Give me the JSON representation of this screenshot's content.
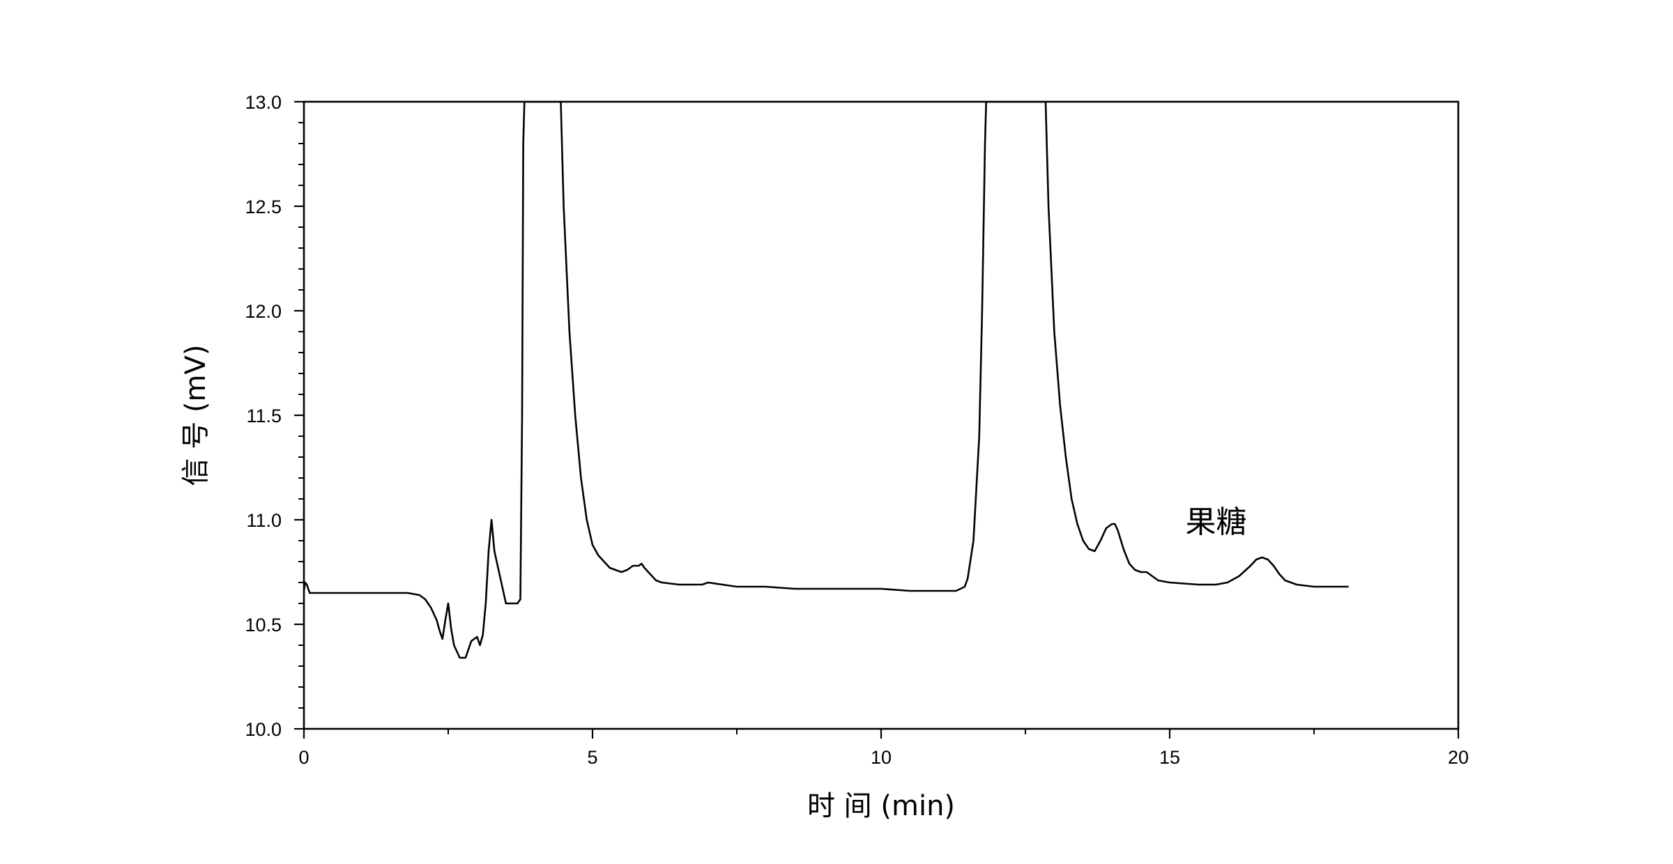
{
  "chart_data": {
    "type": "line",
    "title": "",
    "xlabel": "时 间 (min)",
    "ylabel": "信 号 (mV)",
    "xlim": [
      0,
      20
    ],
    "ylim": [
      10.0,
      13.0
    ],
    "x_ticks": [
      0,
      5,
      10,
      15,
      20
    ],
    "x_tick_labels": [
      "0",
      "5",
      "10",
      "15",
      "20"
    ],
    "y_ticks": [
      10.0,
      10.5,
      11.0,
      11.5,
      12.0,
      12.5,
      13.0
    ],
    "y_tick_labels": [
      "10.0",
      "10.5",
      "11.0",
      "11.5",
      "12.0",
      "12.5",
      "13.0"
    ],
    "grid": false,
    "legend": "none",
    "line_color": "#000000",
    "annotations": [
      {
        "text": "果糖",
        "x": 16.6,
        "y": 11.0
      }
    ],
    "series": [
      {
        "x": [
          0.0,
          0.02,
          0.05,
          0.1,
          0.5,
          1.0,
          1.5,
          1.8,
          2.0,
          2.1,
          2.2,
          2.3,
          2.35,
          2.4,
          2.45,
          2.5,
          2.55,
          2.6,
          2.7,
          2.8,
          2.9,
          3.0,
          3.05,
          3.1,
          3.15,
          3.2,
          3.25,
          3.3,
          3.5,
          3.7,
          3.75,
          3.78,
          3.8,
          3.82,
          4.45,
          4.5,
          4.6,
          4.7,
          4.8,
          4.9,
          5.0,
          5.1,
          5.2,
          5.3,
          5.4,
          5.5,
          5.6,
          5.7,
          5.8,
          5.85,
          5.9,
          6.0,
          6.1,
          6.2,
          6.5,
          6.9,
          7.0,
          7.5,
          8.0,
          8.5,
          9.0,
          9.5,
          10.0,
          10.5,
          11.0,
          11.3,
          11.45,
          11.5,
          11.6,
          11.7,
          11.75,
          11.8,
          11.82,
          12.85,
          12.9,
          13.0,
          13.1,
          13.2,
          13.3,
          13.4,
          13.5,
          13.6,
          13.7,
          13.8,
          13.9,
          14.0,
          14.05,
          14.1,
          14.2,
          14.3,
          14.4,
          14.5,
          14.6,
          14.7,
          14.8,
          15.0,
          15.5,
          15.8,
          16.0,
          16.2,
          16.4,
          16.5,
          16.6,
          16.7,
          16.8,
          16.9,
          17.0,
          17.2,
          17.5,
          17.8,
          18.0,
          18.1
        ],
        "values": [
          10.66,
          10.7,
          10.69,
          10.65,
          10.65,
          10.65,
          10.65,
          10.65,
          10.64,
          10.62,
          10.58,
          10.52,
          10.47,
          10.43,
          10.52,
          10.6,
          10.48,
          10.4,
          10.34,
          10.34,
          10.42,
          10.44,
          10.4,
          10.45,
          10.6,
          10.85,
          11.0,
          10.85,
          10.6,
          10.6,
          10.62,
          11.5,
          12.8,
          13.0,
          13.0,
          12.5,
          11.9,
          11.5,
          11.2,
          11.0,
          10.88,
          10.83,
          10.8,
          10.77,
          10.76,
          10.75,
          10.76,
          10.78,
          10.78,
          10.79,
          10.77,
          10.74,
          10.71,
          10.7,
          10.69,
          10.69,
          10.7,
          10.68,
          10.68,
          10.67,
          10.67,
          10.67,
          10.67,
          10.66,
          10.66,
          10.66,
          10.68,
          10.72,
          10.9,
          11.4,
          12.0,
          12.8,
          13.0,
          13.0,
          12.5,
          11.9,
          11.55,
          11.3,
          11.1,
          10.98,
          10.9,
          10.86,
          10.85,
          10.9,
          10.96,
          10.98,
          10.98,
          10.95,
          10.86,
          10.79,
          10.76,
          10.75,
          10.75,
          10.73,
          10.71,
          10.7,
          10.69,
          10.69,
          10.7,
          10.73,
          10.78,
          10.81,
          10.82,
          10.81,
          10.78,
          10.74,
          10.71,
          10.69,
          10.68,
          10.68,
          10.68,
          10.68
        ]
      }
    ]
  }
}
